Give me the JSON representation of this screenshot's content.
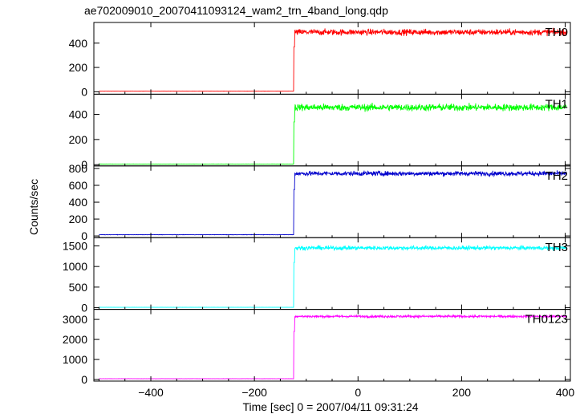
{
  "chart_data": {
    "type": "line",
    "title": "ae702009010_20070411093124_wam2_trn_4band_long.qdp",
    "xlabel": "Time [sec] 0 = 2007/04/11 09:31:24",
    "ylabel": "Counts/sec",
    "xlim": [
      -510,
      410
    ],
    "x_ticks": [
      -400,
      -200,
      0,
      200,
      400
    ],
    "x_tick_labels": [
      "−400",
      "−200",
      "0",
      "200",
      "400"
    ],
    "step_time": -124,
    "panels": [
      {
        "name": "TH0",
        "color": "#ff0000",
        "ylim": [
          -20,
          570
        ],
        "yticks": [
          0,
          200,
          400
        ],
        "ytick_labels": [
          "0",
          "200",
          "400"
        ],
        "baseline": 5,
        "level": 490,
        "noise": 25,
        "peak": 370
      },
      {
        "name": "TH1",
        "color": "#00ff00",
        "ylim": [
          -10,
          560
        ],
        "yticks": [
          0,
          200,
          400
        ],
        "ytick_labels": [
          "0",
          "200",
          "400"
        ],
        "baseline": 5,
        "level": 455,
        "noise": 28,
        "peak": 340
      },
      {
        "name": "TH2",
        "color": "#0000cc",
        "ylim": [
          -20,
          830
        ],
        "yticks": [
          0,
          200,
          400,
          600,
          800
        ],
        "ytick_labels": [
          "0",
          "200",
          "400",
          "600",
          "800"
        ],
        "baseline": 15,
        "level": 740,
        "noise": 28,
        "peak": 550
      },
      {
        "name": "TH3",
        "color": "#00ffff",
        "ylim": [
          -40,
          1700
        ],
        "yticks": [
          0,
          500,
          1000,
          1500
        ],
        "ytick_labels": [
          "0",
          "500",
          "1000",
          "1500"
        ],
        "baseline": 10,
        "level": 1450,
        "noise": 50,
        "peak": 1100
      },
      {
        "name": "TH0123",
        "color": "#ff00ff",
        "ylim": [
          -80,
          3500
        ],
        "yticks": [
          0,
          1000,
          2000,
          3000
        ],
        "ytick_labels": [
          "0",
          "1000",
          "2000",
          "3000"
        ],
        "baseline": 40,
        "level": 3150,
        "noise": 60,
        "peak": 2400
      }
    ]
  }
}
